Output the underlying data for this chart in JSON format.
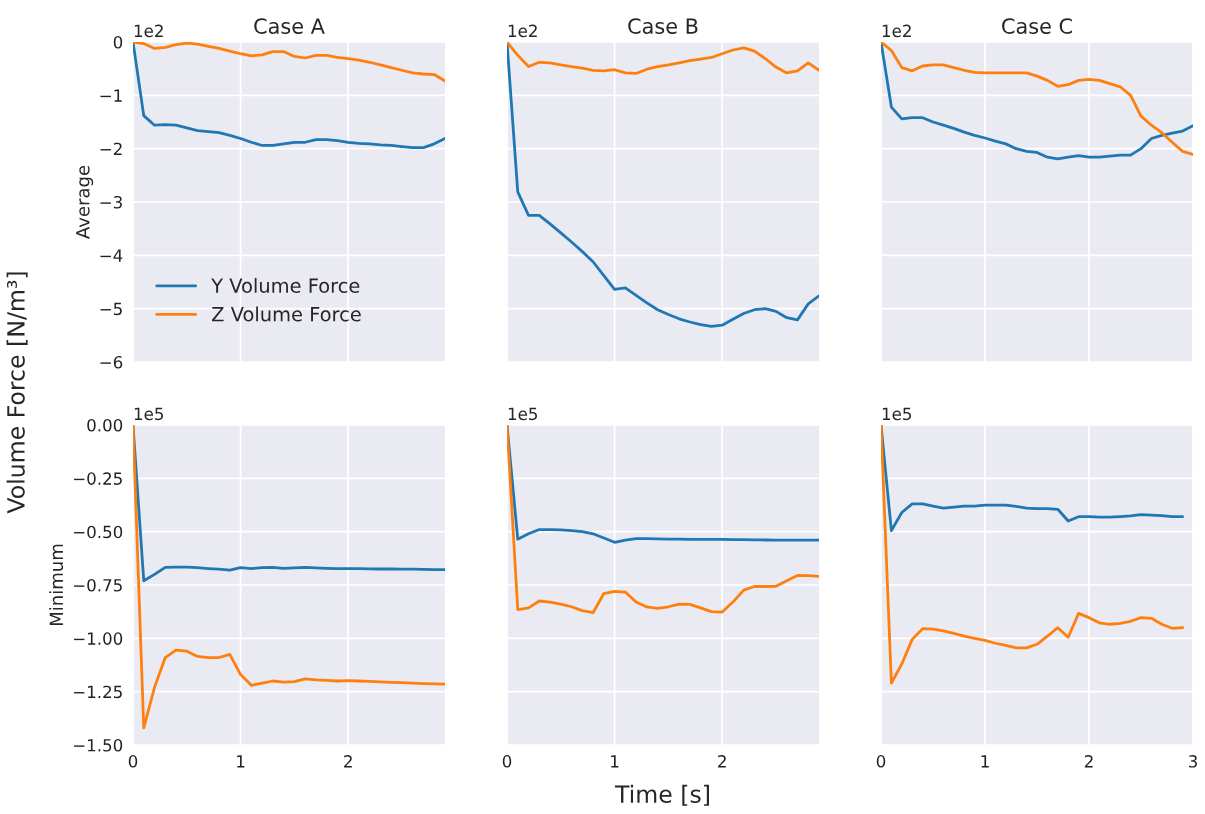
{
  "chart_data": [
    {
      "type": "line",
      "title": "Case A",
      "ylabel": "Average",
      "annotations": [
        "1e2",
        "Volume Force [N/m³]"
      ],
      "x": [
        0,
        0.1,
        0.2,
        0.3,
        0.4,
        0.5,
        0.6,
        0.7,
        0.8,
        0.9,
        1.0,
        1.1,
        1.2,
        1.3,
        1.4,
        1.5,
        1.6,
        1.7,
        1.8,
        1.9,
        2.0,
        2.1,
        2.2,
        2.3,
        2.4,
        2.5,
        2.6,
        2.7,
        2.8,
        2.9
      ],
      "xlim": [
        0,
        2.9
      ],
      "xticks": [
        0,
        1,
        2
      ],
      "ylim": [
        -6,
        0
      ],
      "yticks": [
        {
          "value": -6,
          "label": "−6"
        },
        {
          "value": -5,
          "label": "−5"
        },
        {
          "value": -4,
          "label": "−4"
        },
        {
          "value": -3,
          "label": "−3"
        },
        {
          "value": -2,
          "label": "−2"
        },
        {
          "value": -1,
          "label": "−1"
        },
        0
      ],
      "grid": true,
      "tick_labels": "y",
      "legend": "bottom left",
      "series": [
        {
          "name": "Y Volume Force",
          "color": "#1f77b4",
          "values": [
            0,
            -1.38,
            -1.56,
            -1.55,
            -1.56,
            -1.61,
            -1.66,
            -1.68,
            -1.7,
            -1.75,
            -1.81,
            -1.88,
            -1.94,
            -1.94,
            -1.91,
            -1.88,
            -1.88,
            -1.83,
            -1.83,
            -1.85,
            -1.88,
            -1.9,
            -1.91,
            -1.93,
            -1.94,
            -1.96,
            -1.98,
            -1.98,
            -1.91,
            -1.81
          ]
        },
        {
          "name": "Z Volume Force",
          "color": "#ff7f0e",
          "values": [
            0,
            -0.03,
            -0.12,
            -0.1,
            -0.05,
            -0.02,
            -0.04,
            -0.08,
            -0.12,
            -0.17,
            -0.22,
            -0.26,
            -0.24,
            -0.18,
            -0.18,
            -0.27,
            -0.3,
            -0.25,
            -0.25,
            -0.29,
            -0.31,
            -0.34,
            -0.38,
            -0.43,
            -0.48,
            -0.53,
            -0.58,
            -0.6,
            -0.61,
            -0.73
          ]
        }
      ]
    },
    {
      "type": "line",
      "title": "Case B",
      "annotations": [
        "1e2"
      ],
      "x": [
        0,
        0.1,
        0.2,
        0.3,
        0.4,
        0.5,
        0.6,
        0.7,
        0.8,
        0.9,
        1.0,
        1.1,
        1.2,
        1.3,
        1.4,
        1.5,
        1.6,
        1.7,
        1.8,
        1.9,
        2.0,
        2.1,
        2.2,
        2.3,
        2.4,
        2.5,
        2.6,
        2.7,
        2.8,
        2.9
      ],
      "xlim": [
        0,
        2.9
      ],
      "xticks": [
        0,
        1,
        2
      ],
      "ylim": [
        -6,
        0
      ],
      "yticks": [
        -6,
        -5,
        -4,
        -3,
        -2,
        -1,
        0
      ],
      "grid": true,
      "tick_labels": false,
      "series": [
        {
          "color": "#1f77b4",
          "values": [
            0,
            -2.81,
            -3.25,
            -3.25,
            -3.41,
            -3.58,
            -3.75,
            -3.93,
            -4.12,
            -4.38,
            -4.64,
            -4.61,
            -4.75,
            -4.89,
            -5.02,
            -5.11,
            -5.19,
            -5.25,
            -5.3,
            -5.33,
            -5.31,
            -5.2,
            -5.09,
            -5.02,
            -5.0,
            -5.05,
            -5.17,
            -5.21,
            -4.91,
            -4.76
          ]
        },
        {
          "color": "#ff7f0e",
          "values": [
            0,
            -0.25,
            -0.46,
            -0.38,
            -0.39,
            -0.43,
            -0.46,
            -0.49,
            -0.53,
            -0.54,
            -0.52,
            -0.58,
            -0.59,
            -0.51,
            -0.46,
            -0.43,
            -0.39,
            -0.35,
            -0.32,
            -0.29,
            -0.22,
            -0.15,
            -0.11,
            -0.17,
            -0.31,
            -0.47,
            -0.58,
            -0.54,
            -0.39,
            -0.53
          ]
        }
      ]
    },
    {
      "type": "line",
      "title": "Case C",
      "annotations": [
        "1e2"
      ],
      "x": [
        0,
        0.1,
        0.2,
        0.3,
        0.4,
        0.5,
        0.6,
        0.7,
        0.8,
        0.9,
        1.0,
        1.1,
        1.2,
        1.3,
        1.4,
        1.5,
        1.6,
        1.7,
        1.8,
        1.9,
        2.0,
        2.1,
        2.2,
        2.3,
        2.4,
        2.5,
        2.6,
        2.7,
        2.8,
        2.9,
        3.0
      ],
      "xlim": [
        0,
        3
      ],
      "xticks": [
        0,
        1,
        2,
        3
      ],
      "ylim": [
        -6,
        0
      ],
      "yticks": [
        -6,
        -5,
        -4,
        -3,
        -2,
        -1,
        0
      ],
      "grid": true,
      "tick_labels": false,
      "series": [
        {
          "color": "#1f77b4",
          "values": [
            0,
            -1.22,
            -1.44,
            -1.42,
            -1.42,
            -1.5,
            -1.56,
            -1.62,
            -1.69,
            -1.75,
            -1.8,
            -1.86,
            -1.91,
            -2.0,
            -2.05,
            -2.07,
            -2.16,
            -2.19,
            -2.16,
            -2.13,
            -2.16,
            -2.16,
            -2.14,
            -2.12,
            -2.12,
            -2.0,
            -1.81,
            -1.75,
            -1.71,
            -1.67,
            -1.57
          ]
        },
        {
          "color": "#ff7f0e",
          "values": [
            0,
            -0.16,
            -0.48,
            -0.54,
            -0.45,
            -0.43,
            -0.43,
            -0.48,
            -0.53,
            -0.57,
            -0.58,
            -0.58,
            -0.58,
            -0.58,
            -0.58,
            -0.64,
            -0.72,
            -0.83,
            -0.8,
            -0.72,
            -0.7,
            -0.72,
            -0.78,
            -0.84,
            -1.0,
            -1.39,
            -1.56,
            -1.7,
            -1.88,
            -2.05,
            -2.11
          ]
        }
      ]
    },
    {
      "type": "line",
      "ylabel": "Minimum",
      "annotations": [
        "1e5"
      ],
      "x": [
        0,
        0.1,
        0.2,
        0.3,
        0.4,
        0.5,
        0.6,
        0.7,
        0.8,
        0.9,
        1.0,
        1.1,
        1.2,
        1.3,
        1.4,
        1.5,
        1.6,
        1.7,
        1.8,
        1.9,
        2.0,
        2.1,
        2.2,
        2.3,
        2.4,
        2.5,
        2.6,
        2.7,
        2.8,
        2.9
      ],
      "xlim": [
        0,
        2.9
      ],
      "xticks": [
        0,
        1,
        2
      ],
      "ylim": [
        -1.5,
        0
      ],
      "yticks": [
        {
          "value": -1.5,
          "label": "−1.50"
        },
        {
          "value": -1.25,
          "label": "−1.25"
        },
        {
          "value": -1.0,
          "label": "−1.00"
        },
        {
          "value": -0.75,
          "label": "−0.75"
        },
        {
          "value": -0.5,
          "label": "−0.50"
        },
        {
          "value": -0.25,
          "label": "−0.25"
        },
        {
          "value": 0,
          "label": "0.00"
        }
      ],
      "grid": true,
      "series": [
        {
          "color": "#1f77b4",
          "values": [
            0,
            -0.73,
            -0.7,
            -0.667,
            -0.666,
            -0.666,
            -0.669,
            -0.673,
            -0.676,
            -0.68,
            -0.669,
            -0.673,
            -0.669,
            -0.667,
            -0.672,
            -0.67,
            -0.667,
            -0.67,
            -0.672,
            -0.673,
            -0.673,
            -0.673,
            -0.674,
            -0.675,
            -0.675,
            -0.676,
            -0.676,
            -0.677,
            -0.678,
            -0.678
          ]
        },
        {
          "color": "#ff7f0e",
          "values": [
            0,
            -1.42,
            -1.23,
            -1.09,
            -1.055,
            -1.06,
            -1.085,
            -1.09,
            -1.09,
            -1.075,
            -1.17,
            -1.22,
            -1.21,
            -1.2,
            -1.205,
            -1.203,
            -1.19,
            -1.195,
            -1.197,
            -1.2,
            -1.198,
            -1.2,
            -1.202,
            -1.204,
            -1.206,
            -1.208,
            -1.21,
            -1.212,
            -1.213,
            -1.215
          ]
        }
      ]
    },
    {
      "type": "line",
      "xlabel": "Time [s]",
      "annotations": [
        "1e5"
      ],
      "x": [
        0,
        0.1,
        0.2,
        0.3,
        0.4,
        0.5,
        0.6,
        0.7,
        0.8,
        0.9,
        1.0,
        1.1,
        1.2,
        1.3,
        1.4,
        1.5,
        1.6,
        1.7,
        1.8,
        1.9,
        2.0,
        2.1,
        2.2,
        2.3,
        2.4,
        2.5,
        2.6,
        2.7,
        2.8,
        2.9
      ],
      "xlim": [
        0,
        2.9
      ],
      "xticks": [
        0,
        1,
        2
      ],
      "ylim": [
        -1.5,
        0
      ],
      "yticks": [
        -1.5,
        -1.25,
        -1.0,
        -0.75,
        -0.5,
        -0.25,
        0
      ],
      "grid": true,
      "tick_labels": "x",
      "series": [
        {
          "color": "#1f77b4",
          "values": [
            0,
            -0.535,
            -0.51,
            -0.49,
            -0.49,
            -0.492,
            -0.495,
            -0.5,
            -0.51,
            -0.53,
            -0.55,
            -0.54,
            -0.533,
            -0.533,
            -0.534,
            -0.535,
            -0.535,
            -0.536,
            -0.536,
            -0.536,
            -0.536,
            -0.537,
            -0.537,
            -0.538,
            -0.539,
            -0.54,
            -0.54,
            -0.54,
            -0.54,
            -0.54
          ]
        },
        {
          "color": "#ff7f0e",
          "values": [
            0,
            -0.865,
            -0.857,
            -0.825,
            -0.83,
            -0.84,
            -0.852,
            -0.87,
            -0.88,
            -0.79,
            -0.78,
            -0.783,
            -0.83,
            -0.853,
            -0.86,
            -0.852,
            -0.84,
            -0.841,
            -0.857,
            -0.875,
            -0.877,
            -0.83,
            -0.774,
            -0.757,
            -0.757,
            -0.756,
            -0.73,
            -0.705,
            -0.706,
            -0.71
          ]
        }
      ]
    },
    {
      "type": "line",
      "annotations": [
        "1e5"
      ],
      "x": [
        0,
        0.1,
        0.2,
        0.3,
        0.4,
        0.5,
        0.6,
        0.7,
        0.8,
        0.9,
        1.0,
        1.1,
        1.2,
        1.3,
        1.4,
        1.5,
        1.6,
        1.7,
        1.8,
        1.9,
        2.0,
        2.1,
        2.2,
        2.3,
        2.4,
        2.5,
        2.6,
        2.7,
        2.8,
        2.9
      ],
      "xlim": [
        0,
        3
      ],
      "xticks": [
        0,
        1,
        2,
        3
      ],
      "ylim": [
        -1.5,
        0
      ],
      "yticks": [
        -1.5,
        -1.25,
        -1.0,
        -0.75,
        -0.5,
        -0.25,
        0
      ],
      "grid": true,
      "tick_labels": "x",
      "series": [
        {
          "color": "#1f77b4",
          "values": [
            0,
            -0.495,
            -0.41,
            -0.37,
            -0.37,
            -0.38,
            -0.39,
            -0.385,
            -0.38,
            -0.38,
            -0.376,
            -0.376,
            -0.376,
            -0.382,
            -0.39,
            -0.392,
            -0.392,
            -0.395,
            -0.45,
            -0.43,
            -0.43,
            -0.432,
            -0.432,
            -0.429,
            -0.426,
            -0.42,
            -0.422,
            -0.425,
            -0.43,
            -0.43
          ]
        },
        {
          "color": "#ff7f0e",
          "values": [
            0,
            -1.21,
            -1.12,
            -1.005,
            -0.955,
            -0.957,
            -0.965,
            -0.977,
            -0.99,
            -1.0,
            -1.01,
            -1.023,
            -1.033,
            -1.045,
            -1.045,
            -1.028,
            -0.99,
            -0.95,
            -0.995,
            -0.883,
            -0.903,
            -0.927,
            -0.934,
            -0.93,
            -0.92,
            -0.903,
            -0.906,
            -0.934,
            -0.953,
            -0.95
          ]
        }
      ]
    }
  ]
}
